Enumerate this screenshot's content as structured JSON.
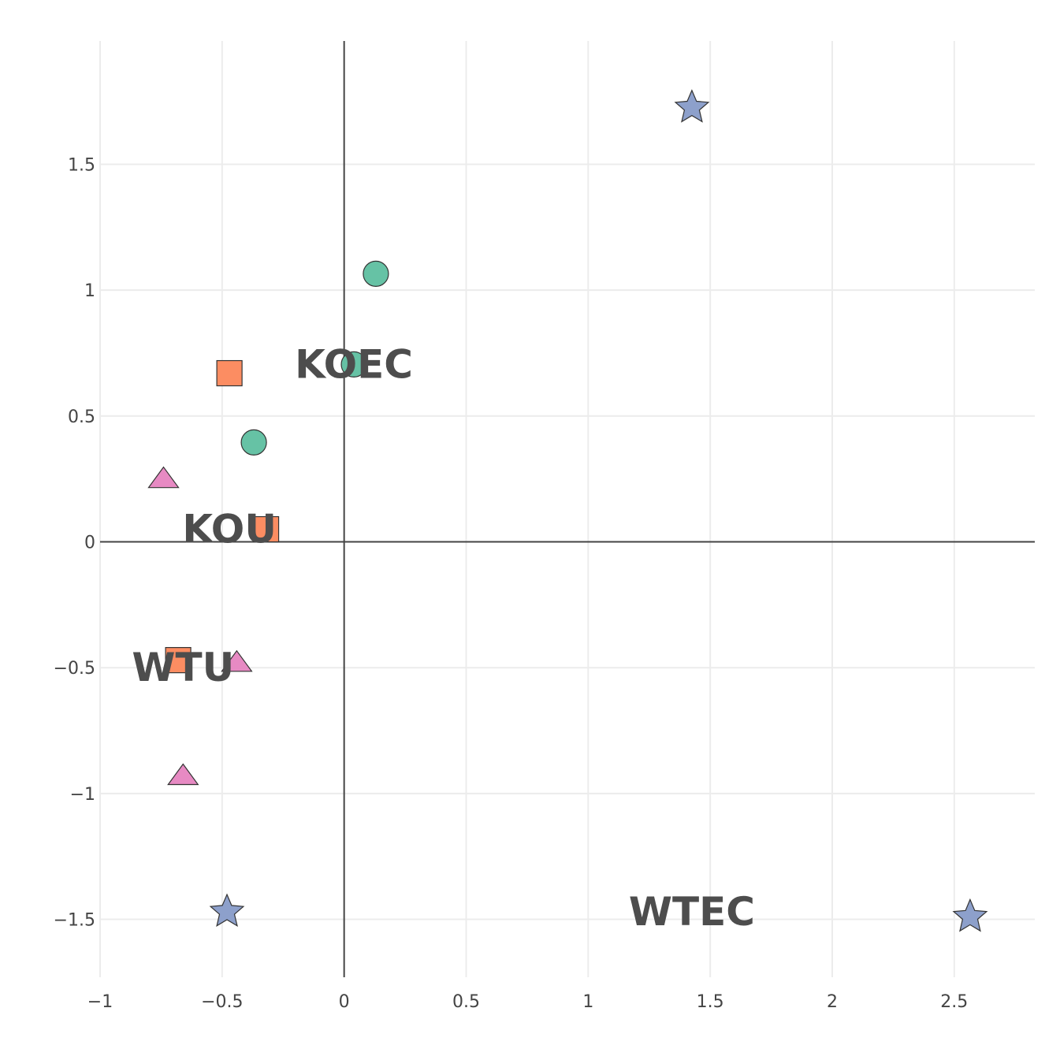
{
  "chart_data": {
    "type": "scatter",
    "title": "",
    "xlabel": "",
    "ylabel": "",
    "xlim": [
      -1.0,
      2.83
    ],
    "ylim": [
      -1.73,
      1.99
    ],
    "x_ticks": [
      -1,
      -0.5,
      0,
      0.5,
      1,
      1.5,
      2,
      2.5
    ],
    "y_ticks": [
      -1.5,
      -1,
      -0.5,
      0,
      0.5,
      1,
      1.5
    ],
    "x_tick_labels": [
      "−1",
      "−0.5",
      "0",
      "0.5",
      "1",
      "1.5",
      "2",
      "2.5"
    ],
    "y_tick_labels": [
      "−1.5",
      "−1",
      "−0.5",
      "0",
      "0.5",
      "1",
      "1.5"
    ],
    "grid": true,
    "zero_lines": true,
    "legend": "none",
    "series": [
      {
        "symbol": "circle",
        "color": "#66c2a5",
        "points": [
          {
            "x": 0.13,
            "y": 1.065
          },
          {
            "x": 0.04,
            "y": 0.705
          },
          {
            "x": -0.37,
            "y": 0.395
          }
        ]
      },
      {
        "symbol": "square",
        "color": "#fc8d62",
        "points": [
          {
            "x": -0.47,
            "y": 0.67
          },
          {
            "x": -0.32,
            "y": 0.05
          },
          {
            "x": -0.68,
            "y": -0.47
          }
        ]
      },
      {
        "symbol": "triangle",
        "color": "#e78ac3",
        "points": [
          {
            "x": -0.74,
            "y": 0.25
          },
          {
            "x": -0.44,
            "y": -0.48
          },
          {
            "x": -0.66,
            "y": -0.93
          }
        ]
      },
      {
        "symbol": "star",
        "color": "#8da0cb",
        "points": [
          {
            "x": 1.425,
            "y": 1.725
          },
          {
            "x": -0.48,
            "y": -1.47
          },
          {
            "x": 2.565,
            "y": -1.49
          }
        ]
      }
    ],
    "annotations": [
      {
        "text": "KOEC",
        "x": 0.04,
        "y": 0.705
      },
      {
        "text": "KOU",
        "x": -0.47,
        "y": 0.05
      },
      {
        "text": "WTU",
        "x": -0.66,
        "y": -0.5
      },
      {
        "text": "WTEC",
        "x": 1.425,
        "y": -1.47
      }
    ]
  }
}
